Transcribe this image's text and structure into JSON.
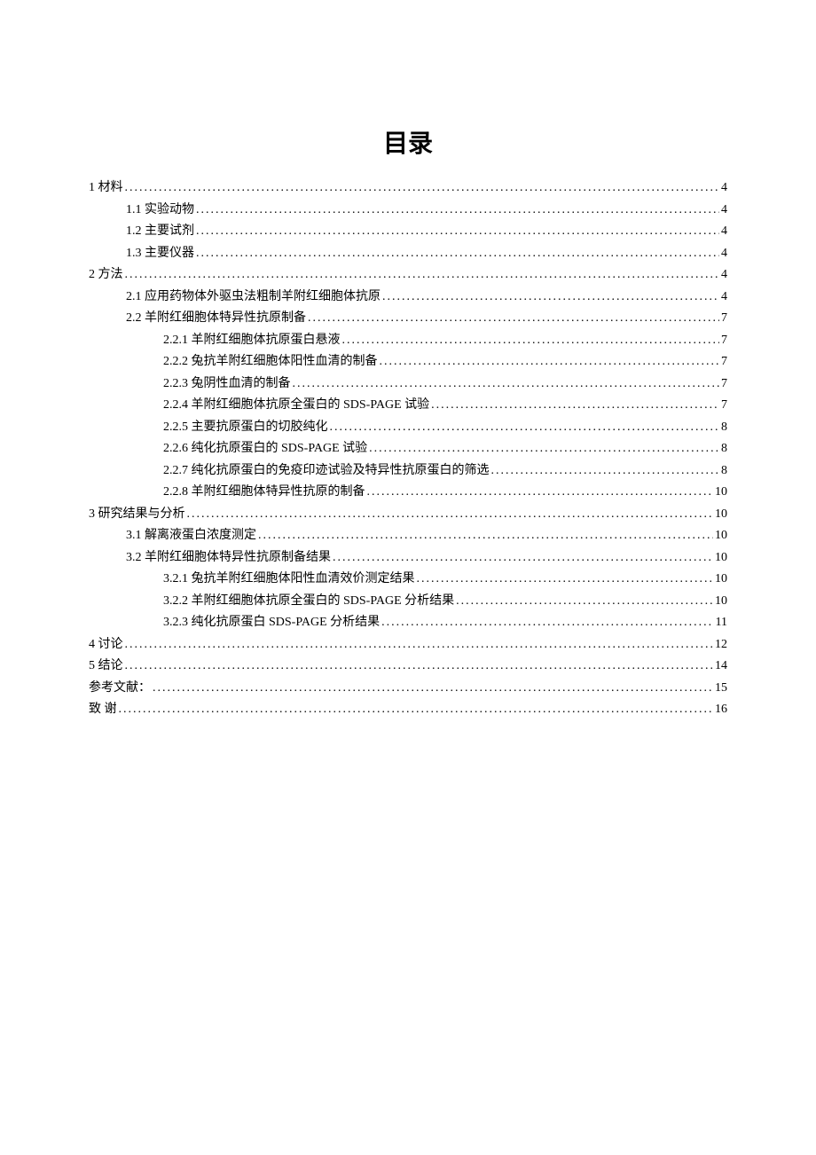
{
  "title": "目录",
  "entries": [
    {
      "level": 1,
      "label": "1 材料",
      "page": "4"
    },
    {
      "level": 2,
      "label": "1.1 实验动物",
      "page": "4"
    },
    {
      "level": 2,
      "label": "1.2 主要试剂",
      "page": "4"
    },
    {
      "level": 2,
      "label": "1.3 主要仪器",
      "page": "4"
    },
    {
      "level": 1,
      "label": "2 方法",
      "page": "4"
    },
    {
      "level": 2,
      "label": "2.1 应用药物体外驱虫法粗制羊附红细胞体抗原",
      "page": "4"
    },
    {
      "level": 2,
      "label": "2.2 羊附红细胞体特异性抗原制备",
      "page": "7"
    },
    {
      "level": 3,
      "label": "2.2.1 羊附红细胞体抗原蛋白悬液",
      "page": "7"
    },
    {
      "level": 3,
      "label": "2.2.2 兔抗羊附红细胞体阳性血清的制备",
      "page": "7"
    },
    {
      "level": 3,
      "label": "2.2.3 兔阴性血清的制备",
      "page": "7"
    },
    {
      "level": 3,
      "label": "2.2.4 羊附红细胞体抗原全蛋白的 SDS-PAGE 试验",
      "page": "7"
    },
    {
      "level": 3,
      "label": "2.2.5 主要抗原蛋白的切胶纯化",
      "page": "8"
    },
    {
      "level": 3,
      "label": "2.2.6 纯化抗原蛋白的 SDS-PAGE 试验",
      "page": "8"
    },
    {
      "level": 3,
      "label": "2.2.7 纯化抗原蛋白的免疫印迹试验及特异性抗原蛋白的筛选",
      "page": "8"
    },
    {
      "level": 3,
      "label": "2.2.8 羊附红细胞体特异性抗原的制备",
      "page": "10"
    },
    {
      "level": 1,
      "label": "3 研究结果与分析",
      "page": "10"
    },
    {
      "level": 2,
      "label": "3.1 解离液蛋白浓度测定",
      "page": "10"
    },
    {
      "level": 2,
      "label": "3.2 羊附红细胞体特异性抗原制备结果",
      "page": "10"
    },
    {
      "level": 3,
      "label": "3.2.1 兔抗羊附红细胞体阳性血清效价测定结果",
      "page": "10"
    },
    {
      "level": 3,
      "label": "3.2.2  羊附红细胞体抗原全蛋白的 SDS-PAGE 分析结果",
      "page": "10"
    },
    {
      "level": 3,
      "label": "3.2.3 纯化抗原蛋白 SDS-PAGE 分析结果",
      "page": "11"
    },
    {
      "level": 1,
      "label": "4 讨论",
      "page": "12"
    },
    {
      "level": 1,
      "label": "5 结论",
      "page": "14"
    },
    {
      "level": 1,
      "label": "参考文献：",
      "page": "15"
    },
    {
      "level": 1,
      "label": "致 谢",
      "page": "16"
    }
  ]
}
